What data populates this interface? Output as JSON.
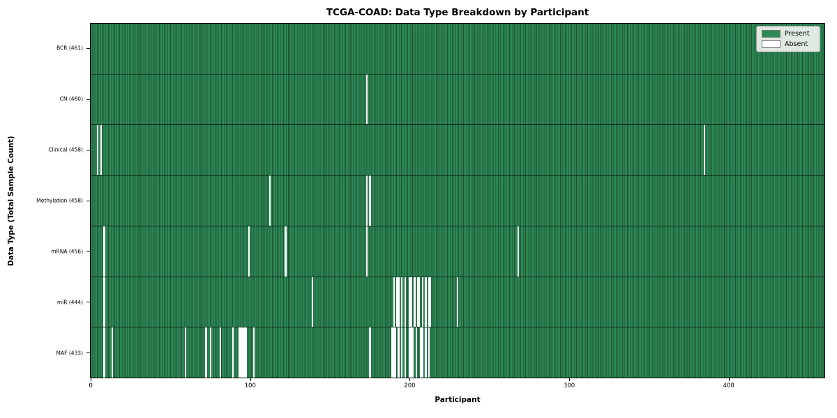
{
  "chart_data": {
    "type": "heatmap",
    "title": "TCGA-COAD: Data Type Breakdown by Participant",
    "xlabel": "Participant",
    "ylabel": "Data Type (Total Sample Count)",
    "n_participants": 461,
    "x_ticks": [
      0,
      100,
      200,
      300,
      400
    ],
    "x_range": [
      0,
      460
    ],
    "grid": false,
    "colors": {
      "present": "#2e8b57",
      "absent": "#ffffff",
      "bar_edge": "#1d5435"
    },
    "legend": {
      "position": "upper-right",
      "entries": [
        {
          "label": "Present",
          "color": "#2e8b57"
        },
        {
          "label": "Absent",
          "color": "#ffffff"
        }
      ]
    },
    "rows": [
      {
        "name": "bcr",
        "data_type": "BCR",
        "label": "BCR (461)",
        "present_count": 461,
        "absent_participants": []
      },
      {
        "name": "cn",
        "data_type": "CN",
        "label": "CN (460)",
        "present_count": 460,
        "absent_participants": [
          173
        ]
      },
      {
        "name": "clinical",
        "data_type": "Clinical",
        "label": "Clinical (458)",
        "present_count": 458,
        "absent_participants": [
          4,
          6,
          385
        ]
      },
      {
        "name": "methylation",
        "data_type": "Methylation",
        "label": "Methylation (458)",
        "present_count": 458,
        "absent_participants": [
          112,
          173,
          175
        ]
      },
      {
        "name": "mrna",
        "data_type": "mRNA",
        "label": "mRNA (456)",
        "present_count": 456,
        "absent_participants": [
          8,
          99,
          122,
          173,
          268
        ]
      },
      {
        "name": "mir",
        "data_type": "miR",
        "label": "miR (444)",
        "present_count": 444,
        "absent_participants": [
          8,
          139,
          190,
          192,
          193,
          195,
          197,
          200,
          201,
          203,
          205,
          206,
          208,
          210,
          212,
          213,
          230
        ]
      },
      {
        "name": "maf",
        "data_type": "MAF",
        "label": "MAF (433)",
        "present_count": 433,
        "absent_participants": [
          8,
          13,
          59,
          72,
          75,
          81,
          89,
          93,
          94,
          95,
          96,
          97,
          102,
          175,
          189,
          190,
          191,
          193,
          195,
          197,
          200,
          201,
          202,
          204,
          207,
          208,
          210,
          212
        ]
      }
    ]
  }
}
